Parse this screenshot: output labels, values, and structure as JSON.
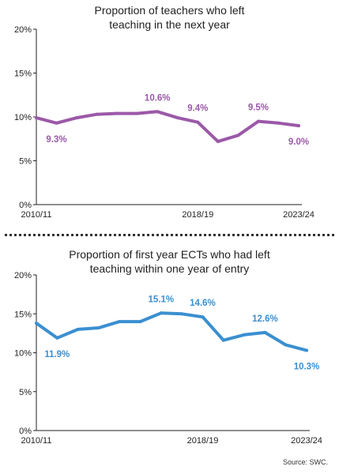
{
  "source": "Source: SWC.",
  "chart_data": [
    {
      "type": "line",
      "title_lines": [
        "Proportion of teachers who left",
        "teaching in the next year"
      ],
      "color": "#9b59a8",
      "x_labels": [
        "2010/11",
        "2018/19",
        "2023/24"
      ],
      "x_label_indices": [
        0,
        8,
        13
      ],
      "y_ticks": [
        "0%",
        "5%",
        "10%",
        "15%",
        "20%"
      ],
      "ylim": [
        0,
        20
      ],
      "values": [
        9.9,
        9.3,
        9.9,
        10.3,
        10.4,
        10.4,
        10.6,
        9.9,
        9.4,
        7.2,
        7.9,
        9.5,
        9.3,
        9.0
      ],
      "annotations": [
        {
          "index": 1,
          "text": "9.3%",
          "position": "below"
        },
        {
          "index": 6,
          "text": "10.6%",
          "position": "above"
        },
        {
          "index": 8,
          "text": "9.4%",
          "position": "above"
        },
        {
          "index": 11,
          "text": "9.5%",
          "position": "above"
        },
        {
          "index": 13,
          "text": "9.0%",
          "position": "below"
        }
      ]
    },
    {
      "type": "line",
      "title_lines": [
        "Proportion of first year ECTs who had left",
        "teaching within one year of entry"
      ],
      "color": "#3a8fd0",
      "x_labels": [
        "2010/11",
        "2018/19",
        "2023/24"
      ],
      "x_label_indices": [
        0,
        8,
        13
      ],
      "y_ticks": [
        "0%",
        "5%",
        "10%",
        "15%",
        "20%"
      ],
      "ylim": [
        0,
        20
      ],
      "values": [
        13.8,
        11.9,
        13.0,
        13.2,
        14.0,
        14.0,
        15.1,
        15.0,
        14.6,
        11.6,
        12.3,
        12.6,
        11.0,
        10.3
      ],
      "annotations": [
        {
          "index": 1,
          "text": "11.9%",
          "position": "below"
        },
        {
          "index": 6,
          "text": "15.1%",
          "position": "above"
        },
        {
          "index": 8,
          "text": "14.6%",
          "position": "above"
        },
        {
          "index": 11,
          "text": "12.6%",
          "position": "above"
        },
        {
          "index": 13,
          "text": "10.3%",
          "position": "below"
        }
      ]
    }
  ]
}
